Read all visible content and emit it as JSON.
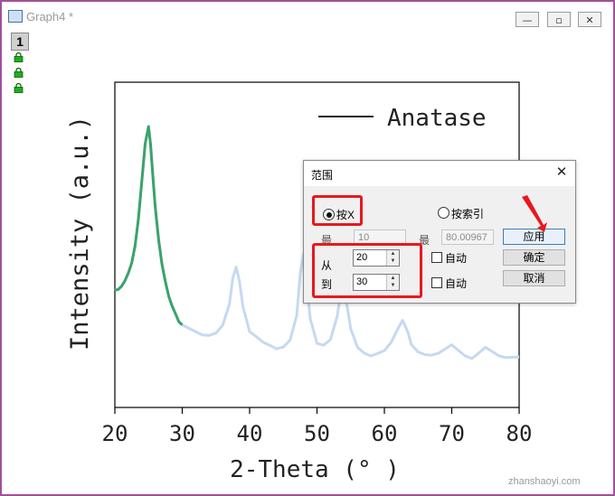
{
  "window": {
    "title": "Graph4 *",
    "minimize_glyph": "—",
    "maximize_glyph": "▫",
    "close_glyph": "✕",
    "layer_number": "1"
  },
  "graph": {
    "ylabel": "Intensity (a.u.)",
    "xlabel": "2-Theta (° )",
    "legend_label": "Anatase"
  },
  "chart_data": {
    "type": "line",
    "xlim": [
      20,
      80
    ],
    "xticks": [
      "20",
      "30",
      "40",
      "50",
      "60",
      "70",
      "80"
    ],
    "ylim": [
      0,
      100
    ],
    "series": [
      {
        "name": "Anatase",
        "color_full": "#c5d9f1",
        "color_selected": "#3aa36b",
        "selected_range": [
          20,
          30
        ],
        "x": [
          20,
          20.5,
          21,
          21.5,
          22,
          22.5,
          23,
          23.5,
          24,
          24.5,
          25,
          25.3,
          25.6,
          26,
          26.5,
          27,
          27.5,
          28,
          28.5,
          29,
          29.5,
          30,
          31,
          32,
          33,
          34,
          35,
          36,
          37,
          37.5,
          38,
          38.5,
          39,
          40,
          41,
          42,
          43,
          44,
          45,
          46,
          47,
          47.5,
          48,
          48.5,
          49,
          50,
          51,
          52,
          53,
          53.5,
          54,
          54.5,
          55,
          56,
          57,
          58,
          59,
          60,
          61,
          62,
          62.7,
          63.5,
          64,
          65,
          66,
          67,
          68,
          69,
          70,
          71,
          72,
          73,
          74,
          75,
          76,
          77,
          78,
          79,
          80
        ],
        "y": [
          35,
          35,
          36,
          38,
          41,
          45,
          52,
          63,
          78,
          93,
          100,
          93,
          82,
          68,
          55,
          45,
          38,
          32,
          28,
          25,
          22,
          21,
          20,
          19,
          18,
          18,
          19,
          22,
          30,
          40,
          44,
          38,
          28,
          18,
          16,
          14,
          13,
          12,
          13,
          16,
          26,
          42,
          50,
          38,
          24,
          14,
          13,
          15,
          24,
          33,
          35,
          28,
          20,
          13,
          11,
          10,
          11,
          12,
          15,
          20,
          23,
          18,
          13,
          10,
          9,
          9,
          10,
          12,
          14,
          12,
          10,
          9,
          11,
          13,
          11,
          9,
          8,
          8,
          8
        ]
      }
    ]
  },
  "dialog": {
    "title": "范围",
    "close_glyph": "✕",
    "radio_by_x": "按X",
    "radio_by_index": "按索引",
    "min_label": "最",
    "min_value": "10",
    "max_label": "最",
    "max_value": "80.00967",
    "from_label": "从",
    "from_value": "20",
    "to_label": "到",
    "to_value": "30",
    "auto_label_1": "自动",
    "auto_label_2": "自动",
    "apply_button": "应用",
    "ok_button": "确定",
    "cancel_button": "取消"
  },
  "annotation_color": "#e8181e",
  "watermark": "zhanshaoyi.com"
}
